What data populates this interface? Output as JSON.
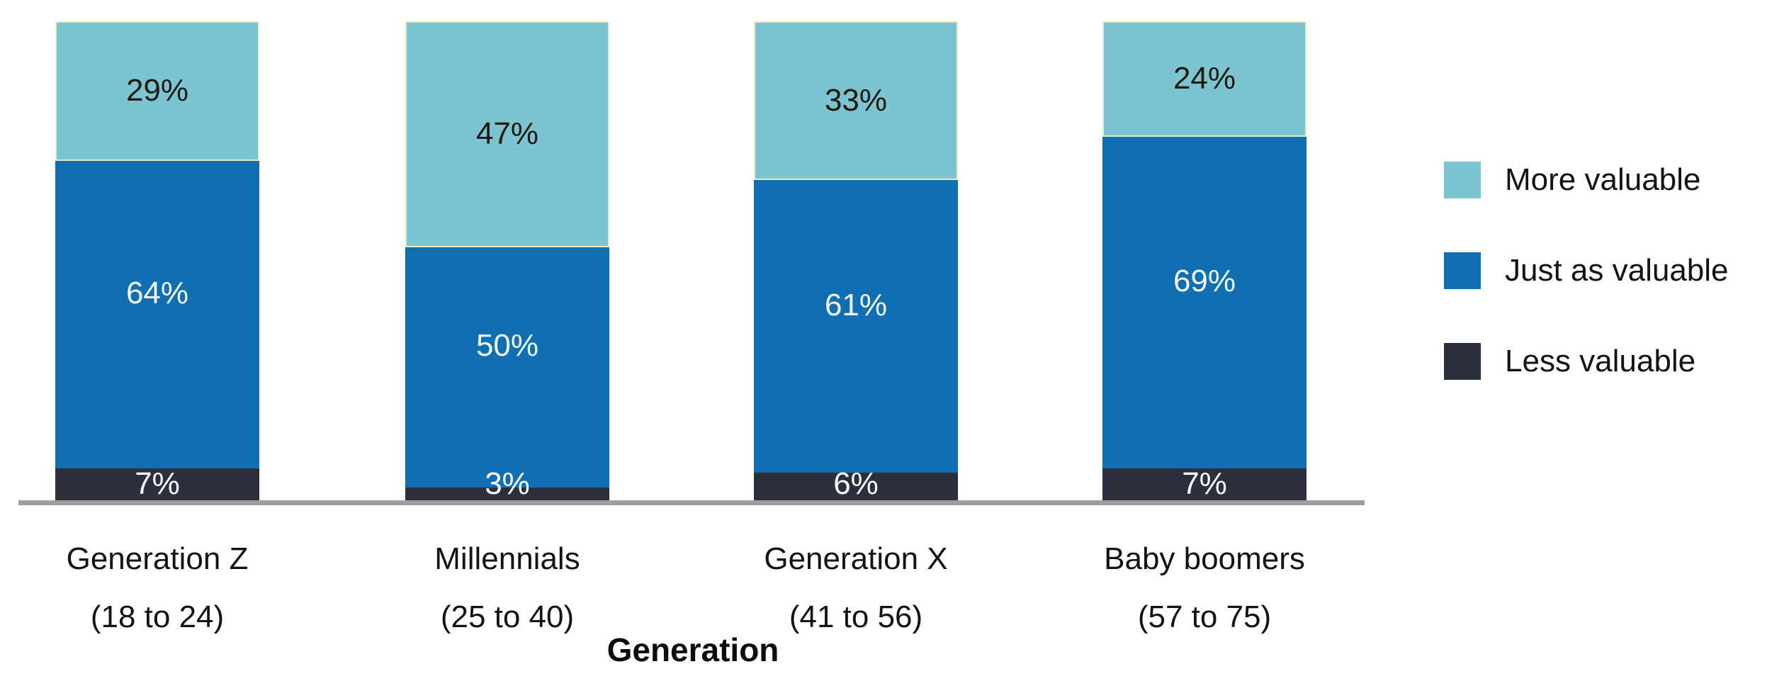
{
  "chart_data": {
    "type": "bar",
    "stacked": true,
    "orientation": "vertical",
    "title": "",
    "xlabel": "Generation",
    "ylabel": "",
    "ylim": [
      0,
      100
    ],
    "grid": false,
    "legend_position": "right",
    "value_suffix": "%",
    "axis_line_color": "#9e9e9e",
    "background": "#ffffff",
    "categories": [
      {
        "name": "Generation Z",
        "age_range": "(18 to 24)"
      },
      {
        "name": "Millennials",
        "age_range": "(25 to 40)"
      },
      {
        "name": "Generation X",
        "age_range": "(41 to 56)"
      },
      {
        "name": "Baby boomers",
        "age_range": "(57 to 75)"
      }
    ],
    "series": [
      {
        "name": "More valuable",
        "color": "#7cc4d2",
        "label_color": "#1d1b10",
        "values": [
          29,
          47,
          33,
          24
        ]
      },
      {
        "name": "Just as valuable",
        "color": "#0f6fb2",
        "label_color": "#f3f6f8",
        "values": [
          64,
          50,
          61,
          69
        ]
      },
      {
        "name": "Less valuable",
        "color": "#2c2f3e",
        "label_color": "#fbfbfb",
        "values": [
          7,
          3,
          6,
          7
        ]
      }
    ]
  }
}
